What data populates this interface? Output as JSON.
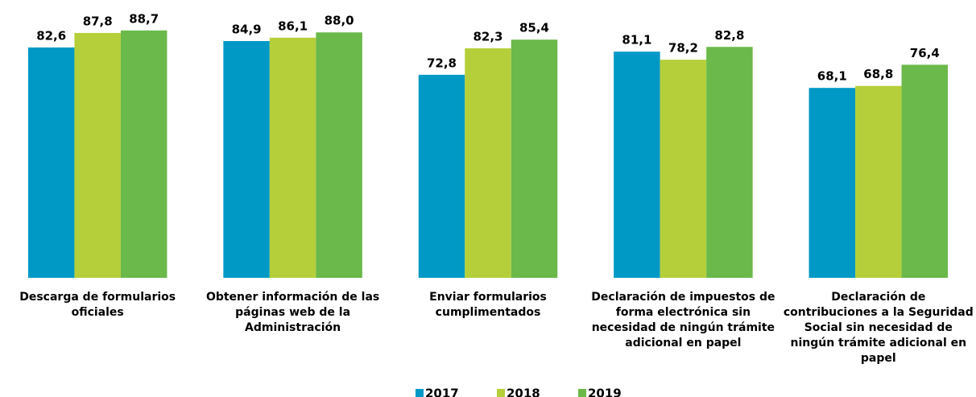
{
  "chart_data": {
    "type": "bar",
    "categories": [
      "Descarga de formularios oficiales",
      "Obtener información de las páginas web de la Administración",
      "Enviar formularios cumplimentados",
      "Declaración de impuestos de forma electrónica sin necesidad de ningún trámite adicional en papel",
      "Declaración de contribuciones a la Seguridad Social sin necesidad de ningún trámite adicional en papel"
    ],
    "series": [
      {
        "name": "2017",
        "color": "#0099c6",
        "values": [
          82.6,
          84.9,
          72.8,
          81.1,
          68.1
        ],
        "value_labels": [
          "82,6",
          "84,9",
          "72,8",
          "81,1",
          "68,1"
        ]
      },
      {
        "name": "2018",
        "color": "#b5cf3a",
        "values": [
          87.8,
          86.1,
          82.3,
          78.2,
          68.8
        ],
        "value_labels": [
          "87,8",
          "86,1",
          "82,3",
          "78,2",
          "68,8"
        ]
      },
      {
        "name": "2019",
        "color": "#6ab94a",
        "values": [
          88.7,
          88.0,
          85.4,
          82.8,
          76.4
        ],
        "value_labels": [
          "88,7",
          "88,0",
          "85,4",
          "82,8",
          "76,4"
        ]
      }
    ],
    "ylim": [
      0,
      95
    ],
    "legend": "bottom"
  }
}
